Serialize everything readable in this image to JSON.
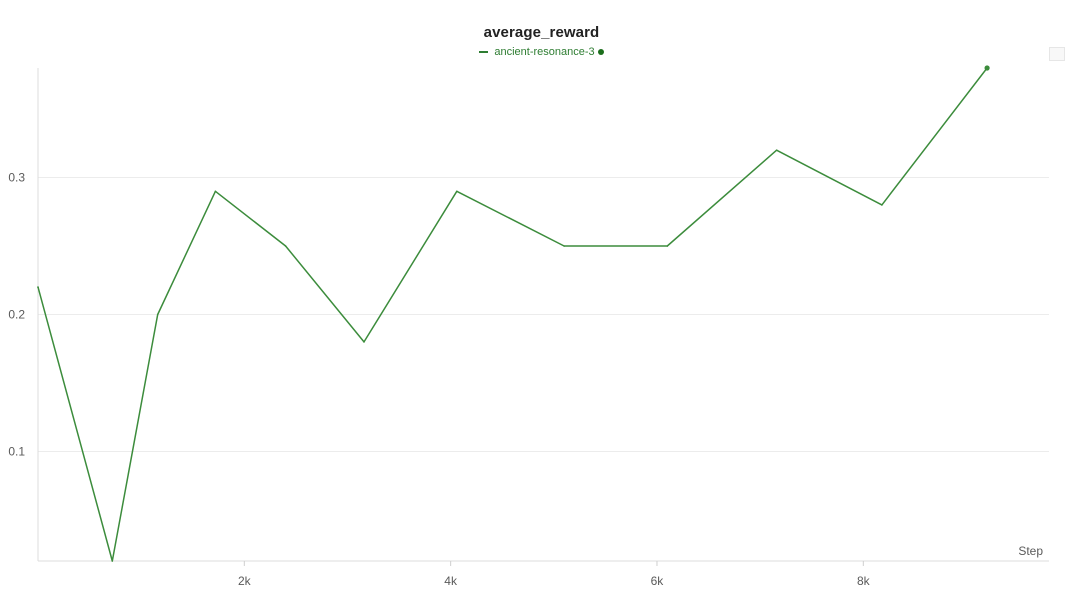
{
  "chart_data": {
    "type": "line",
    "title": "average_reward",
    "xlabel": "Step",
    "ylabel": "",
    "legend_position": "top-center",
    "grid": true,
    "xlim": [
      0,
      9800
    ],
    "ylim": [
      0.02,
      0.38
    ],
    "x_ticks": [
      2000,
      4000,
      6000,
      8000
    ],
    "x_tick_labels": [
      "2k",
      "4k",
      "6k",
      "8k"
    ],
    "y_ticks": [
      0.1,
      0.2,
      0.3
    ],
    "y_tick_labels": [
      "0.1",
      "0.2",
      "0.3"
    ],
    "series": [
      {
        "name": "ancient-resonance-3",
        "color": "#3c8c3c",
        "x": [
          0,
          720,
          1160,
          1720,
          2400,
          3160,
          4060,
          5100,
          6100,
          7160,
          8180,
          9200
        ],
        "y": [
          0.22,
          0.02,
          0.2,
          0.29,
          0.25,
          0.18,
          0.29,
          0.25,
          0.25,
          0.32,
          0.28,
          0.38
        ]
      }
    ]
  }
}
